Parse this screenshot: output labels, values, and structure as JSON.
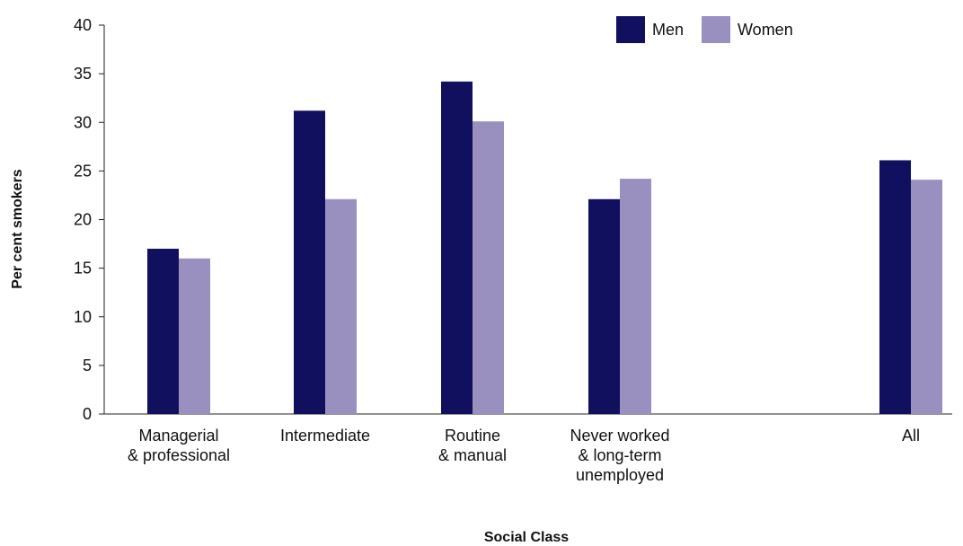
{
  "chart_data": {
    "type": "bar",
    "title": "",
    "xlabel": "Social Class",
    "ylabel": "Per cent smokers",
    "ylim": [
      0,
      40
    ],
    "yticks": [
      0,
      5,
      10,
      15,
      20,
      25,
      30,
      35,
      40
    ],
    "categories": [
      "Managerial\n& professional",
      "Intermediate",
      "Routine\n& manual",
      "Never worked\n& long-term\nunemployed",
      "All"
    ],
    "series": [
      {
        "name": "Men",
        "color": "#10105f",
        "values": [
          17,
          31.2,
          34.2,
          22.1,
          26.1
        ]
      },
      {
        "name": "Women",
        "color": "#9990c0",
        "values": [
          16,
          22.1,
          30.1,
          24.2,
          24.1
        ]
      }
    ],
    "legend_position": "top-right",
    "grid": false
  }
}
